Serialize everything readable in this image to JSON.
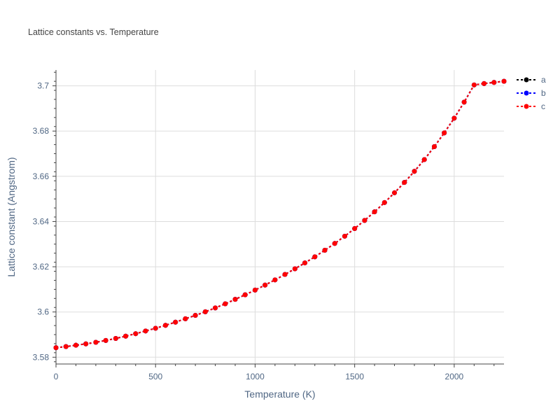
{
  "chart_data": {
    "type": "line",
    "title": "Lattice constants vs. Temperature",
    "xlabel": "Temperature (K)",
    "ylabel": "Lattice constant (Angstrom)",
    "xlim": [
      0,
      2250
    ],
    "ylim": [
      3.577,
      3.707
    ],
    "xticks": [
      0,
      500,
      1000,
      1500,
      2000
    ],
    "xtick_labels": [
      "0",
      "500",
      "1000",
      "1500",
      "2000"
    ],
    "yticks": [
      3.58,
      3.6,
      3.62,
      3.64,
      3.66,
      3.68,
      3.7
    ],
    "ytick_labels": [
      "3.58",
      "3.6",
      "3.62",
      "3.64",
      "3.66",
      "3.68",
      "3.7"
    ],
    "grid": true,
    "legend_position": "top-right",
    "x": [
      0,
      50,
      100,
      150,
      200,
      250,
      300,
      350,
      400,
      450,
      500,
      550,
      600,
      650,
      700,
      750,
      800,
      850,
      900,
      950,
      1000,
      1050,
      1100,
      1150,
      1200,
      1250,
      1300,
      1350,
      1400,
      1450,
      1500,
      1550,
      1600,
      1650,
      1700,
      1750,
      1800,
      1850,
      1900,
      1950,
      2000,
      2050,
      2100,
      2150,
      2200,
      2250
    ],
    "series": [
      {
        "name": "a",
        "color": "#000000",
        "values": [
          3.5842,
          3.5847,
          3.5853,
          3.5859,
          3.5866,
          3.5874,
          3.5883,
          3.5893,
          3.5904,
          3.5916,
          3.5928,
          3.5941,
          3.5955,
          3.597,
          3.5985,
          3.6001,
          3.6018,
          3.6036,
          3.6056,
          3.6076,
          3.6097,
          3.6119,
          3.6142,
          3.6166,
          3.6191,
          3.6217,
          3.6244,
          3.6273,
          3.6303,
          3.6335,
          3.6369,
          3.6405,
          3.6443,
          3.6484,
          3.6527,
          3.6573,
          3.6622,
          3.6674,
          3.6731,
          3.6792,
          3.6857,
          3.6928,
          3.7004,
          3.701,
          3.7015,
          3.702
        ]
      },
      {
        "name": "b",
        "color": "#0000ff",
        "values": [
          3.5842,
          3.5847,
          3.5853,
          3.5859,
          3.5866,
          3.5874,
          3.5883,
          3.5893,
          3.5904,
          3.5916,
          3.5928,
          3.5941,
          3.5955,
          3.597,
          3.5985,
          3.6001,
          3.6018,
          3.6036,
          3.6056,
          3.6076,
          3.6097,
          3.6119,
          3.6142,
          3.6166,
          3.6191,
          3.6217,
          3.6244,
          3.6273,
          3.6303,
          3.6335,
          3.6369,
          3.6405,
          3.6443,
          3.6484,
          3.6527,
          3.6573,
          3.6622,
          3.6674,
          3.6731,
          3.6792,
          3.6857,
          3.6928,
          3.7004,
          3.701,
          3.7015,
          3.702
        ]
      },
      {
        "name": "c",
        "color": "#ff0000",
        "values": [
          3.5842,
          3.5847,
          3.5853,
          3.5859,
          3.5866,
          3.5874,
          3.5883,
          3.5893,
          3.5904,
          3.5916,
          3.5928,
          3.5941,
          3.5955,
          3.597,
          3.5985,
          3.6001,
          3.6018,
          3.6036,
          3.6056,
          3.6076,
          3.6097,
          3.6119,
          3.6142,
          3.6166,
          3.6191,
          3.6217,
          3.6244,
          3.6273,
          3.6303,
          3.6335,
          3.6369,
          3.6405,
          3.6443,
          3.6484,
          3.6527,
          3.6573,
          3.6622,
          3.6674,
          3.6731,
          3.6792,
          3.6857,
          3.6928,
          3.7004,
          3.701,
          3.7015,
          3.702
        ]
      }
    ]
  }
}
